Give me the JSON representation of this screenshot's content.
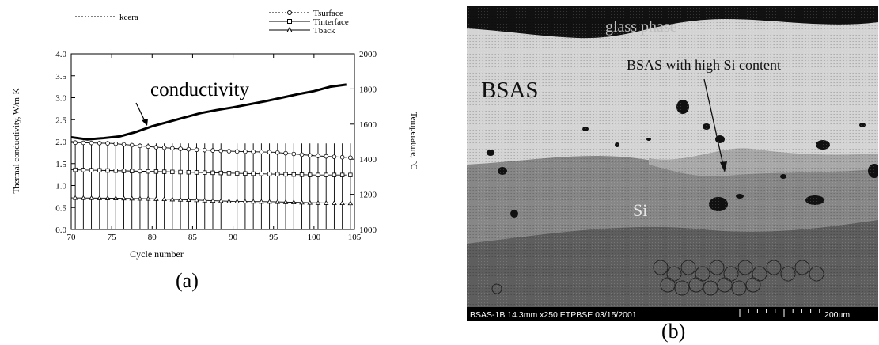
{
  "chart_data": {
    "type": "line",
    "xlabel": "Cycle number",
    "ylabel": "Thermal conductivity, W/m-K",
    "y2label": "Temperature, °C",
    "xlim": [
      70,
      105
    ],
    "ylim": [
      0.0,
      4.0
    ],
    "y2lim": [
      1000,
      2000
    ],
    "xticks": [
      70,
      75,
      80,
      85,
      90,
      95,
      100,
      105
    ],
    "yticks": [
      "0.0",
      "0.5",
      "1.0",
      "1.5",
      "2.0",
      "2.5",
      "3.0",
      "3.5",
      "4.0"
    ],
    "y2ticks": [
      "1000",
      "1200",
      "1400",
      "1600",
      "1800",
      "2000"
    ],
    "legend_left": "kcera",
    "legend_right": [
      "Tsurface",
      "Tinterface",
      "Tback"
    ],
    "annotation": "conductivity",
    "series": [
      {
        "name": "kcera",
        "axis": "left",
        "x": [
          70,
          72,
          74,
          76,
          78,
          80,
          82,
          84,
          86,
          88,
          90,
          92,
          94,
          96,
          98,
          100,
          102,
          104
        ],
        "y": [
          2.1,
          2.05,
          2.08,
          2.12,
          2.22,
          2.35,
          2.45,
          2.55,
          2.65,
          2.72,
          2.78,
          2.85,
          2.92,
          3.0,
          3.08,
          3.15,
          3.25,
          3.3
        ]
      },
      {
        "name": "Tsurface",
        "axis": "right",
        "x": [
          70,
          75,
          80,
          85,
          90,
          95,
          100,
          104
        ],
        "y": [
          1495,
          1490,
          1470,
          1455,
          1445,
          1440,
          1420,
          1410
        ]
      },
      {
        "name": "Tinterface",
        "axis": "right",
        "x": [
          70,
          75,
          80,
          85,
          90,
          95,
          100,
          104
        ],
        "y": [
          1340,
          1335,
          1330,
          1325,
          1320,
          1315,
          1310,
          1310
        ]
      },
      {
        "name": "Tback",
        "axis": "right",
        "x": [
          70,
          75,
          80,
          85,
          90,
          95,
          100,
          104
        ],
        "y": [
          1180,
          1178,
          1175,
          1168,
          1160,
          1158,
          1152,
          1150
        ]
      }
    ]
  },
  "captions": {
    "a": "(a)",
    "b": "(b)"
  },
  "micrograph": {
    "labels": {
      "glass": "glass phase",
      "bsas": "BSAS",
      "high_si": "BSAS with high Si content",
      "si": "Si"
    },
    "info_bar": "BSAS-1B 14.3mm x250 ETPBSE 03/15/2001",
    "scale": "200um",
    "colors": {
      "glass": "#111111",
      "bsas": "#d4d4d4",
      "highsi": "#a8a8a8",
      "si": "#878787",
      "substrate": "#5e5e5e"
    }
  }
}
